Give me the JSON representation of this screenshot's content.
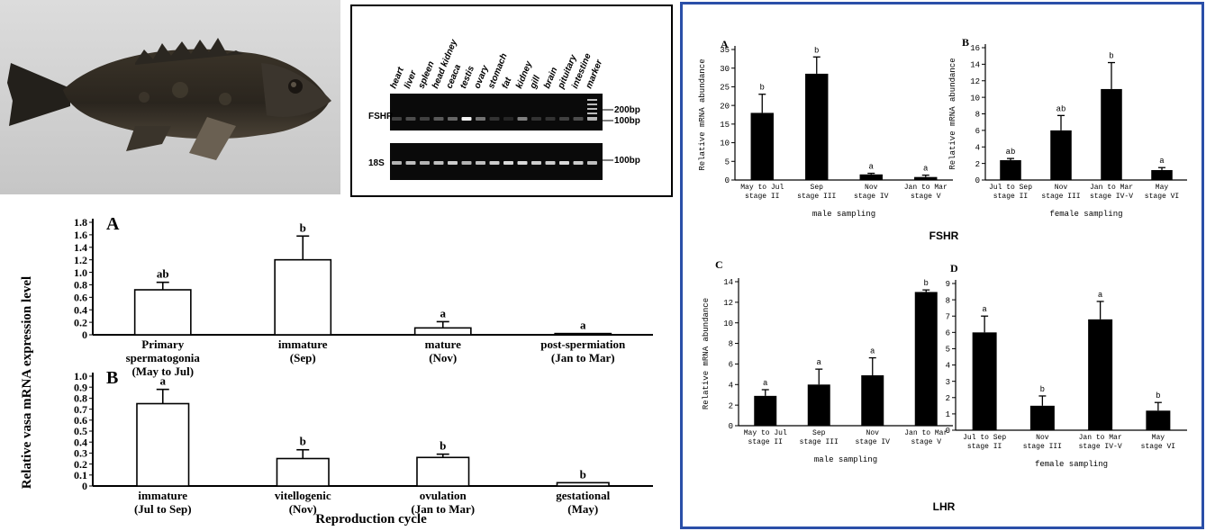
{
  "gel": {
    "lanes": [
      "heart",
      "liver",
      "spleen",
      "head kidney",
      "ceaca",
      "testis",
      "ovary",
      "stomach",
      "fat",
      "kidney",
      "gill",
      "brain",
      "pituitary",
      "intestine",
      "marker"
    ],
    "rows": [
      {
        "label": "FSHR",
        "markers": [
          "200bp",
          "100bp"
        ],
        "band_intensity": [
          0.25,
          0.3,
          0.25,
          0.35,
          0.4,
          0.95,
          0.45,
          0.2,
          0.15,
          0.5,
          0.2,
          0.2,
          0.25,
          0.3,
          0.7
        ]
      },
      {
        "label": "18S",
        "markers": [
          "100bp"
        ],
        "band_intensity": [
          0.7,
          0.75,
          0.7,
          0.75,
          0.8,
          0.7,
          0.75,
          0.8,
          0.85,
          0.85,
          0.8,
          0.8,
          0.85,
          0.8,
          0.75
        ]
      }
    ]
  },
  "left_ylabel": "Relative vasa mRNA expression level",
  "left_xlabel": "Reproduction cycle",
  "chart_data": [
    {
      "type": "bar",
      "panel": "A",
      "color": "#ffffff",
      "categories": [
        [
          "Primary",
          "spermatogonia",
          "(May to Jul)"
        ],
        [
          "immature",
          "(Sep)"
        ],
        [
          "mature",
          "(Nov)"
        ],
        [
          "post-spermiation",
          "(Jan to Mar)"
        ]
      ],
      "values": [
        0.72,
        1.2,
        0.11,
        0.02
      ],
      "errors": [
        0.12,
        0.38,
        0.1,
        0.0
      ],
      "letters": [
        "ab",
        "b",
        "a",
        "a"
      ],
      "yticks": [
        "0",
        "0.2",
        "0.4",
        "0.6",
        "0.8",
        "1.0",
        "1.2",
        "1.4",
        "1.6",
        "1.8"
      ],
      "ylim": [
        0,
        1.8
      ]
    },
    {
      "type": "bar",
      "panel": "B",
      "color": "#ffffff",
      "categories": [
        [
          "immature",
          "(Jul to Sep)"
        ],
        [
          "vitellogenic",
          "(Nov)"
        ],
        [
          "ovulation",
          "(Jan to Mar)"
        ],
        [
          "gestational",
          "(May)"
        ]
      ],
      "values": [
        0.75,
        0.25,
        0.26,
        0.03
      ],
      "errors": [
        0.13,
        0.08,
        0.03,
        0.0
      ],
      "letters": [
        "a",
        "b",
        "b",
        "b"
      ],
      "yticks": [
        "0",
        "0.1",
        "0.2",
        "0.3",
        "0.4",
        "0.5",
        "0.6",
        "0.7",
        "0.8",
        "0.9",
        "1.0"
      ],
      "ylim": [
        0,
        1.0
      ]
    },
    {
      "type": "bar",
      "panel": "A",
      "color": "#000000",
      "ylabel": "Relative mRNA abundance",
      "xlabel": "male sampling",
      "categories": [
        [
          "May to Jul",
          "stage II"
        ],
        [
          "Sep",
          "stage III"
        ],
        [
          "Nov",
          "stage IV"
        ],
        [
          "Jan to Mar",
          "stage V"
        ]
      ],
      "values": [
        18,
        28.5,
        1.5,
        0.8
      ],
      "errors": [
        5,
        4.5,
        0.3,
        0.5
      ],
      "letters": [
        "b",
        "b",
        "a",
        "a"
      ],
      "yticks": [
        "0",
        "5",
        "10",
        "15",
        "20",
        "25",
        "30",
        "35"
      ],
      "ylim": [
        0,
        35
      ]
    },
    {
      "type": "bar",
      "panel": "B",
      "color": "#000000",
      "ylabel": "Relative mRNA abundance",
      "xlabel": "female sampling",
      "categories": [
        [
          "Jul to Sep",
          "stage II"
        ],
        [
          "Nov",
          "stage III"
        ],
        [
          "Jan to Mar",
          "stage IV-V"
        ],
        [
          "May",
          "stage VI"
        ]
      ],
      "values": [
        2.4,
        6,
        11,
        1.2
      ],
      "errors": [
        0.2,
        1.8,
        3.2,
        0.3
      ],
      "letters": [
        "ab",
        "ab",
        "b",
        "a"
      ],
      "yticks": [
        "0",
        "2",
        "4",
        "6",
        "8",
        "10",
        "12",
        "14",
        "16"
      ],
      "ylim": [
        0,
        16
      ]
    },
    {
      "type": "bar",
      "panel": "C",
      "color": "#000000",
      "ylabel": "Relative mRNA abundance",
      "xlabel": "male sampling",
      "categories": [
        [
          "May to Jul",
          "stage II"
        ],
        [
          "Sep",
          "stage III"
        ],
        [
          "Nov",
          "stage IV"
        ],
        [
          "Jan to Mar",
          "stage V"
        ]
      ],
      "values": [
        2.9,
        4,
        4.9,
        13
      ],
      "errors": [
        0.6,
        1.5,
        1.7,
        0.2
      ],
      "letters": [
        "a",
        "a",
        "a",
        "b"
      ],
      "yticks": [
        "0",
        "2",
        "4",
        "6",
        "8",
        "10",
        "12",
        "14"
      ],
      "ylim": [
        0,
        14
      ]
    },
    {
      "type": "bar",
      "panel": "D",
      "color": "#000000",
      "ylabel": "Relative mRNA abundance",
      "xlabel": "female sampling",
      "categories": [
        [
          "Jul to Sep",
          "stage II"
        ],
        [
          "Nov",
          "stage III"
        ],
        [
          "Jan to Mar",
          "stage IV-V"
        ],
        [
          "May",
          "stage VI"
        ]
      ],
      "values": [
        6,
        1.5,
        6.8,
        1.2
      ],
      "errors": [
        1,
        0.6,
        1.1,
        0.5
      ],
      "letters": [
        "a",
        "b",
        "a",
        "b"
      ],
      "yticks": [
        "0",
        "1",
        "2",
        "3",
        "4",
        "5",
        "6",
        "7",
        "8",
        "9"
      ],
      "ylim": [
        0,
        9
      ]
    }
  ],
  "right_labels": {
    "fshr": "FSHR",
    "lhr": "LHR"
  }
}
